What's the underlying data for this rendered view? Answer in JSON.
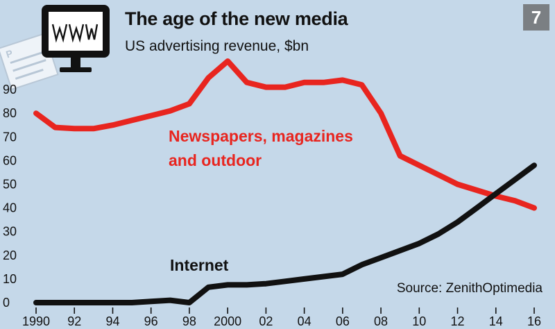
{
  "chart_data": {
    "type": "line",
    "title": "The age of the new media",
    "subtitle": "US advertising revenue, $bn",
    "badge": "7",
    "source": "Source: ZenithOptimedia",
    "ylim": [
      0,
      95
    ],
    "xlim": [
      1990,
      2016
    ],
    "y_ticks": [
      "0",
      "10",
      "20",
      "30",
      "40",
      "50",
      "60",
      "70",
      "80",
      "90"
    ],
    "x_ticks": [
      {
        "value": 1990,
        "label": "1990"
      },
      {
        "value": 1992,
        "label": "92"
      },
      {
        "value": 1994,
        "label": "94"
      },
      {
        "value": 1996,
        "label": "96"
      },
      {
        "value": 1998,
        "label": "98"
      },
      {
        "value": 2000,
        "label": "2000"
      },
      {
        "value": 2002,
        "label": "02"
      },
      {
        "value": 2004,
        "label": "04"
      },
      {
        "value": 2006,
        "label": "06"
      },
      {
        "value": 2008,
        "label": "08"
      },
      {
        "value": 2010,
        "label": "10"
      },
      {
        "value": 2012,
        "label": "12"
      },
      {
        "value": 2014,
        "label": "14"
      },
      {
        "value": 2016,
        "label": "16"
      }
    ],
    "series": [
      {
        "name": "Newspapers, magazines and outdoor",
        "label_lines": [
          "Newspapers, magazines",
          "and outdoor"
        ],
        "color": "#e8251f",
        "x": [
          1990,
          1991,
          1992,
          1993,
          1994,
          1995,
          1996,
          1997,
          1998,
          1999,
          2000,
          2001,
          2002,
          2003,
          2004,
          2005,
          2006,
          2007,
          2008,
          2009,
          2010,
          2011,
          2012,
          2013,
          2014,
          2015,
          2016
        ],
        "values": [
          80,
          74,
          73.5,
          73.5,
          75,
          77,
          79,
          81,
          84,
          95,
          102,
          93,
          91,
          91,
          93,
          93,
          94,
          92,
          80,
          62,
          58,
          54,
          50,
          47.5,
          45,
          43,
          40
        ]
      },
      {
        "name": "Internet",
        "label_lines": [
          "Internet"
        ],
        "color": "#111111",
        "x": [
          1990,
          1991,
          1992,
          1993,
          1994,
          1995,
          1996,
          1997,
          1998,
          1999,
          2000,
          2001,
          2002,
          2003,
          2004,
          2005,
          2006,
          2007,
          2008,
          2009,
          2010,
          2011,
          2012,
          2013,
          2014,
          2015,
          2016
        ],
        "values": [
          0,
          0,
          0,
          0,
          0,
          0,
          0.5,
          1,
          0,
          6.5,
          7.5,
          7.5,
          8,
          9,
          10,
          11,
          12,
          16,
          19,
          22,
          25,
          29,
          34,
          40,
          46,
          52,
          58
        ]
      }
    ]
  }
}
